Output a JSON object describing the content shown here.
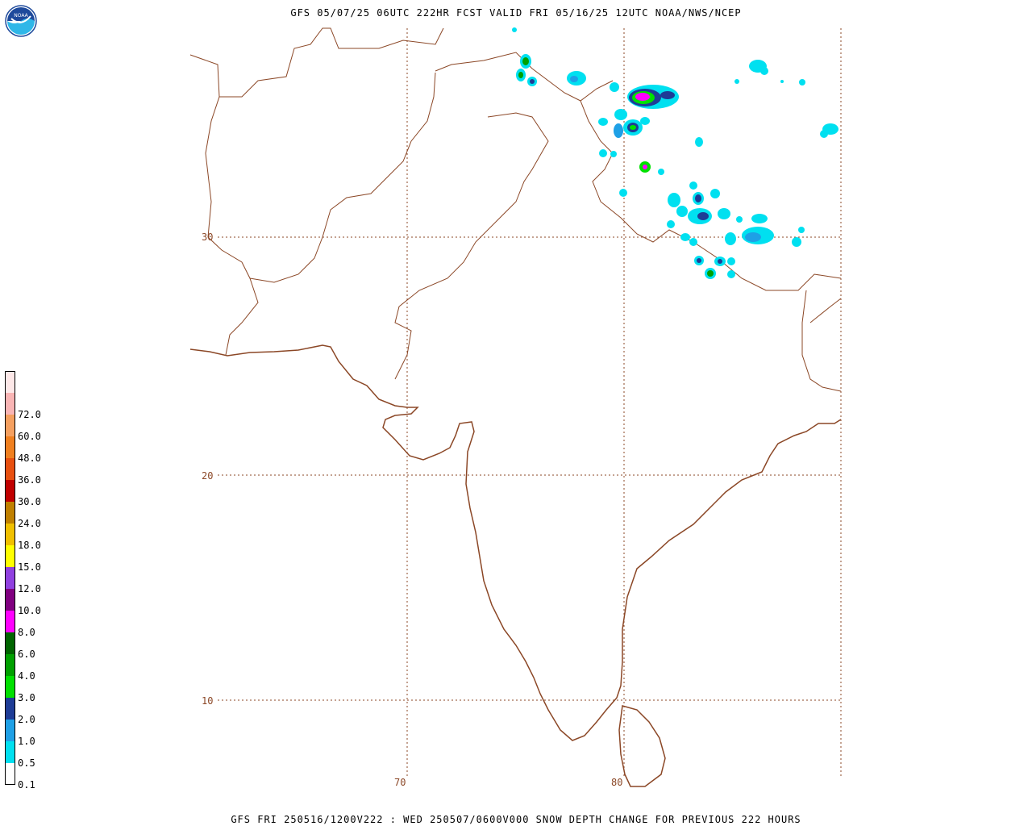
{
  "header": {
    "title": "GFS 05/07/25 06UTC 222HR FCST VALID FRI 05/16/25 12UTC NOAA/NWS/NCEP",
    "logo_text": "NOAA"
  },
  "footer": {
    "caption": "GFS FRI 250516/1200V222 : WED 250507/0600V000 SNOW DEPTH CHANGE FOR PREVIOUS 222 HOURS"
  },
  "map": {
    "latitude_labels": [
      "30",
      "20",
      "10"
    ],
    "longitude_labels": [
      "70",
      "80"
    ],
    "coastline_color": "#8b4726",
    "grid_color": "#8b4726"
  },
  "legend": {
    "items": [
      {
        "label": "",
        "color": "#fde8e8"
      },
      {
        "label": "72.0",
        "color": "#f9b5b5"
      },
      {
        "label": "60.0",
        "color": "#f5a060"
      },
      {
        "label": "48.0",
        "color": "#f08020"
      },
      {
        "label": "36.0",
        "color": "#e85010"
      },
      {
        "label": "30.0",
        "color": "#c00000"
      },
      {
        "label": "24.0",
        "color": "#c08000"
      },
      {
        "label": "18.0",
        "color": "#f0c000"
      },
      {
        "label": "15.0",
        "color": "#ffff00"
      },
      {
        "label": "12.0",
        "color": "#9040e0"
      },
      {
        "label": "10.0",
        "color": "#800080"
      },
      {
        "label": "8.0",
        "color": "#ff00ff"
      },
      {
        "label": "6.0",
        "color": "#006400"
      },
      {
        "label": "4.0",
        "color": "#00a000"
      },
      {
        "label": "3.0",
        "color": "#00e000"
      },
      {
        "label": "2.0",
        "color": "#1e3c96"
      },
      {
        "label": "1.0",
        "color": "#1ea0e6"
      },
      {
        "label": "0.5",
        "color": "#00e0f0"
      },
      {
        "label": "0.1",
        "color": "#ffffff"
      }
    ]
  }
}
